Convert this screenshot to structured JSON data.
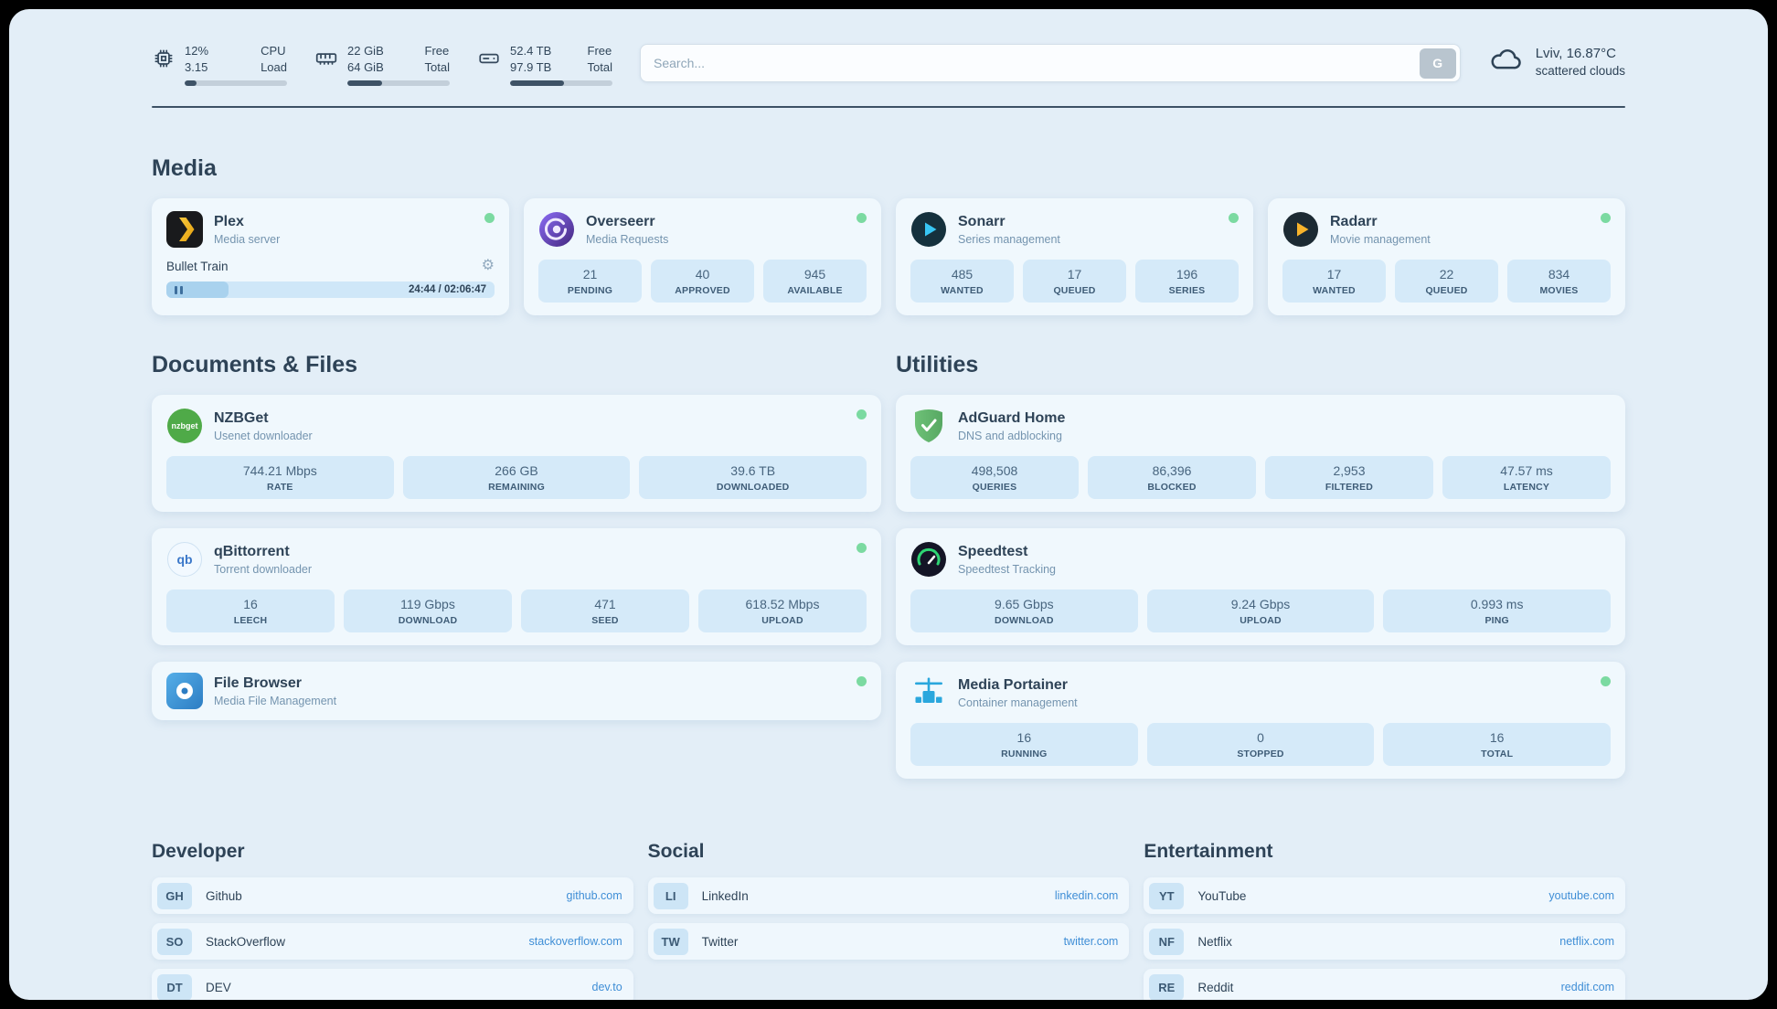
{
  "colors": {
    "page_bg": "#e3eef7",
    "card_bg": "#f0f8fd",
    "tile_bg": "#d5eaf9",
    "text": "#2e4357",
    "subtitle": "#7494af",
    "link": "#3f8ed6",
    "status_green": "#7bdaa1",
    "divider": "#3d5165"
  },
  "icons": {
    "gear": "⚙"
  },
  "system": {
    "cpu": {
      "value_top": "12%",
      "value_bottom": "3.15",
      "label_top": "CPU",
      "label_bottom": "Load",
      "percent": 12
    },
    "memory": {
      "value_top": "22 GiB",
      "value_bottom": "64 GiB",
      "label_top": "Free",
      "label_bottom": "Total",
      "percent": 34
    },
    "disk": {
      "value_top": "52.4 TB",
      "value_bottom": "97.9 TB",
      "label_top": "Free",
      "label_bottom": "Total",
      "percent": 53
    }
  },
  "search": {
    "placeholder": "Search...",
    "button_label": "G"
  },
  "weather": {
    "location": "Lviv, 16.87°C",
    "condition": "scattered clouds"
  },
  "sections": {
    "media": {
      "title": "Media",
      "cards": [
        {
          "name": "Plex",
          "subtitle": "Media server",
          "online": true,
          "now_playing": {
            "title": "Bullet Train",
            "time": "24:44 / 02:06:47",
            "progress_percent": 19
          }
        },
        {
          "name": "Overseerr",
          "subtitle": "Media Requests",
          "online": true,
          "stats": [
            {
              "value": "21",
              "label": "PENDING"
            },
            {
              "value": "40",
              "label": "APPROVED"
            },
            {
              "value": "945",
              "label": "AVAILABLE"
            }
          ]
        },
        {
          "name": "Sonarr",
          "subtitle": "Series management",
          "online": true,
          "stats": [
            {
              "value": "485",
              "label": "WANTED"
            },
            {
              "value": "17",
              "label": "QUEUED"
            },
            {
              "value": "196",
              "label": "SERIES"
            }
          ]
        },
        {
          "name": "Radarr",
          "subtitle": "Movie management",
          "online": true,
          "stats": [
            {
              "value": "17",
              "label": "WANTED"
            },
            {
              "value": "22",
              "label": "QUEUED"
            },
            {
              "value": "834",
              "label": "MOVIES"
            }
          ]
        }
      ]
    },
    "documents": {
      "title": "Documents & Files",
      "cards": [
        {
          "name": "NZBGet",
          "subtitle": "Usenet downloader",
          "online": true,
          "stats": [
            {
              "value": "744.21 Mbps",
              "label": "RATE"
            },
            {
              "value": "266 GB",
              "label": "REMAINING"
            },
            {
              "value": "39.6 TB",
              "label": "DOWNLOADED"
            }
          ]
        },
        {
          "name": "qBittorrent",
          "subtitle": "Torrent downloader",
          "online": true,
          "stats": [
            {
              "value": "16",
              "label": "LEECH"
            },
            {
              "value": "119 Gbps",
              "label": "DOWNLOAD"
            },
            {
              "value": "471",
              "label": "SEED"
            },
            {
              "value": "618.52 Mbps",
              "label": "UPLOAD"
            }
          ]
        },
        {
          "name": "File Browser",
          "subtitle": "Media File Management",
          "online": true,
          "stats": []
        }
      ]
    },
    "utilities": {
      "title": "Utilities",
      "cards": [
        {
          "name": "AdGuard Home",
          "subtitle": "DNS and adblocking",
          "online": false,
          "stats": [
            {
              "value": "498,508",
              "label": "QUERIES"
            },
            {
              "value": "86,396",
              "label": "BLOCKED"
            },
            {
              "value": "2,953",
              "label": "FILTERED"
            },
            {
              "value": "47.57 ms",
              "label": "LATENCY"
            }
          ]
        },
        {
          "name": "Speedtest",
          "subtitle": "Speedtest Tracking",
          "online": false,
          "stats": [
            {
              "value": "9.65 Gbps",
              "label": "DOWNLOAD"
            },
            {
              "value": "9.24 Gbps",
              "label": "UPLOAD"
            },
            {
              "value": "0.993 ms",
              "label": "PING"
            }
          ]
        },
        {
          "name": "Media Portainer",
          "subtitle": "Container management",
          "online": true,
          "stats": [
            {
              "value": "16",
              "label": "RUNNING"
            },
            {
              "value": "0",
              "label": "STOPPED"
            },
            {
              "value": "16",
              "label": "TOTAL"
            }
          ]
        }
      ]
    },
    "bookmark_groups": [
      {
        "title": "Developer",
        "links": [
          {
            "abbr": "GH",
            "name": "Github",
            "url": "github.com"
          },
          {
            "abbr": "SO",
            "name": "StackOverflow",
            "url": "stackoverflow.com"
          },
          {
            "abbr": "DT",
            "name": "DEV",
            "url": "dev.to"
          }
        ]
      },
      {
        "title": "Social",
        "links": [
          {
            "abbr": "LI",
            "name": "LinkedIn",
            "url": "linkedin.com"
          },
          {
            "abbr": "TW",
            "name": "Twitter",
            "url": "twitter.com"
          }
        ]
      },
      {
        "title": "Entertainment",
        "links": [
          {
            "abbr": "YT",
            "name": "YouTube",
            "url": "youtube.com"
          },
          {
            "abbr": "NF",
            "name": "Netflix",
            "url": "netflix.com"
          },
          {
            "abbr": "RE",
            "name": "Reddit",
            "url": "reddit.com"
          }
        ]
      }
    ]
  }
}
